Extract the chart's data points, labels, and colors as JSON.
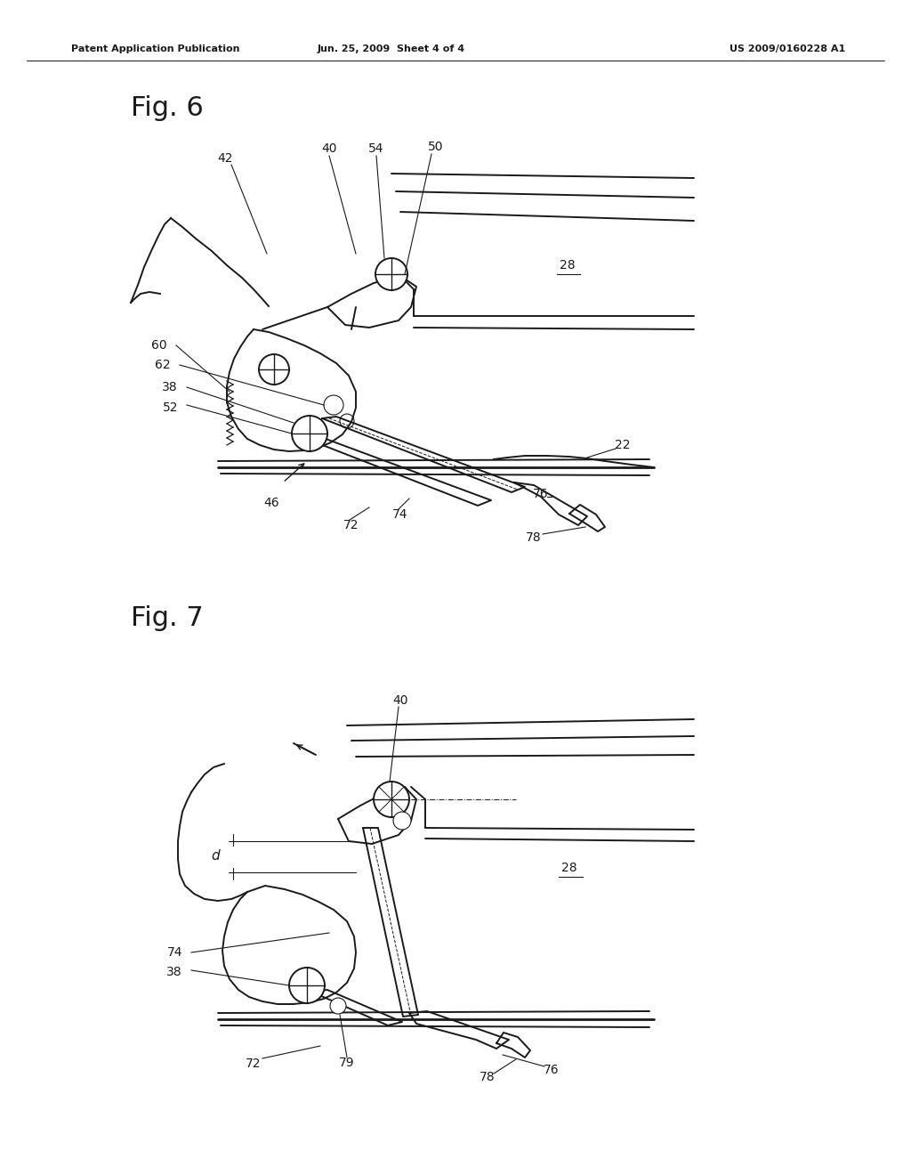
{
  "background_color": "#ffffff",
  "title_left": "Patent Application Publication",
  "title_center": "Jun. 25, 2009  Sheet 4 of 4",
  "title_right": "US 2009/0160228 A1",
  "fig6_label": "Fig. 6",
  "fig7_label": "Fig. 7",
  "line_color": "#1a1a1a",
  "text_color": "#1a1a1a",
  "lw_main": 1.4,
  "lw_thin": 0.8,
  "lw_thick": 2.0,
  "font_size_header": 8,
  "font_size_fig": 18,
  "font_size_label": 10
}
